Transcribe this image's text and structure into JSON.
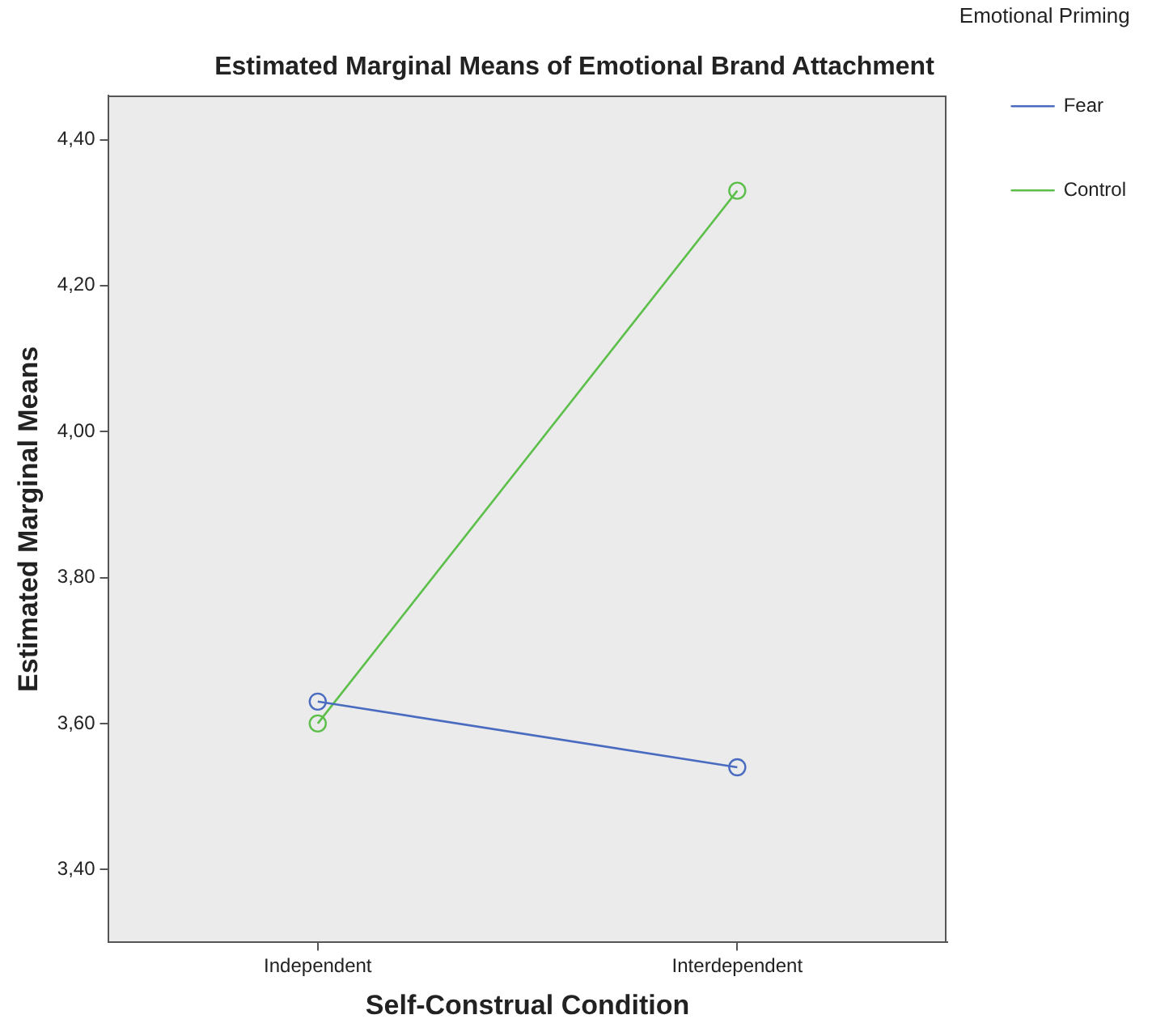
{
  "chart_data": {
    "type": "line",
    "title": "Estimated Marginal Means of Emotional Brand Attachment",
    "xlabel": "Self-Construal Condition",
    "ylabel": "Estimated Marginal Means",
    "legend_title": "Emotional Priming",
    "categories": [
      "Independent",
      "Interdependent"
    ],
    "series": [
      {
        "name": "Fear",
        "color": "#4a6cc0",
        "values": [
          3.63,
          3.54
        ]
      },
      {
        "name": "Control",
        "color": "#5cbf4a",
        "values": [
          3.6,
          4.33
        ]
      }
    ],
    "ylim": [
      3.3,
      4.46
    ],
    "yticks": [
      {
        "value": 3.4,
        "label": "3,40"
      },
      {
        "value": 3.6,
        "label": "3,60"
      },
      {
        "value": 3.8,
        "label": "3,80"
      },
      {
        "value": 4.0,
        "label": "4,00"
      },
      {
        "value": 4.2,
        "label": "4,20"
      },
      {
        "value": 4.4,
        "label": "4,40"
      }
    ],
    "grid": false,
    "legend": "top right",
    "marker": "circle",
    "line_style": "solid"
  }
}
